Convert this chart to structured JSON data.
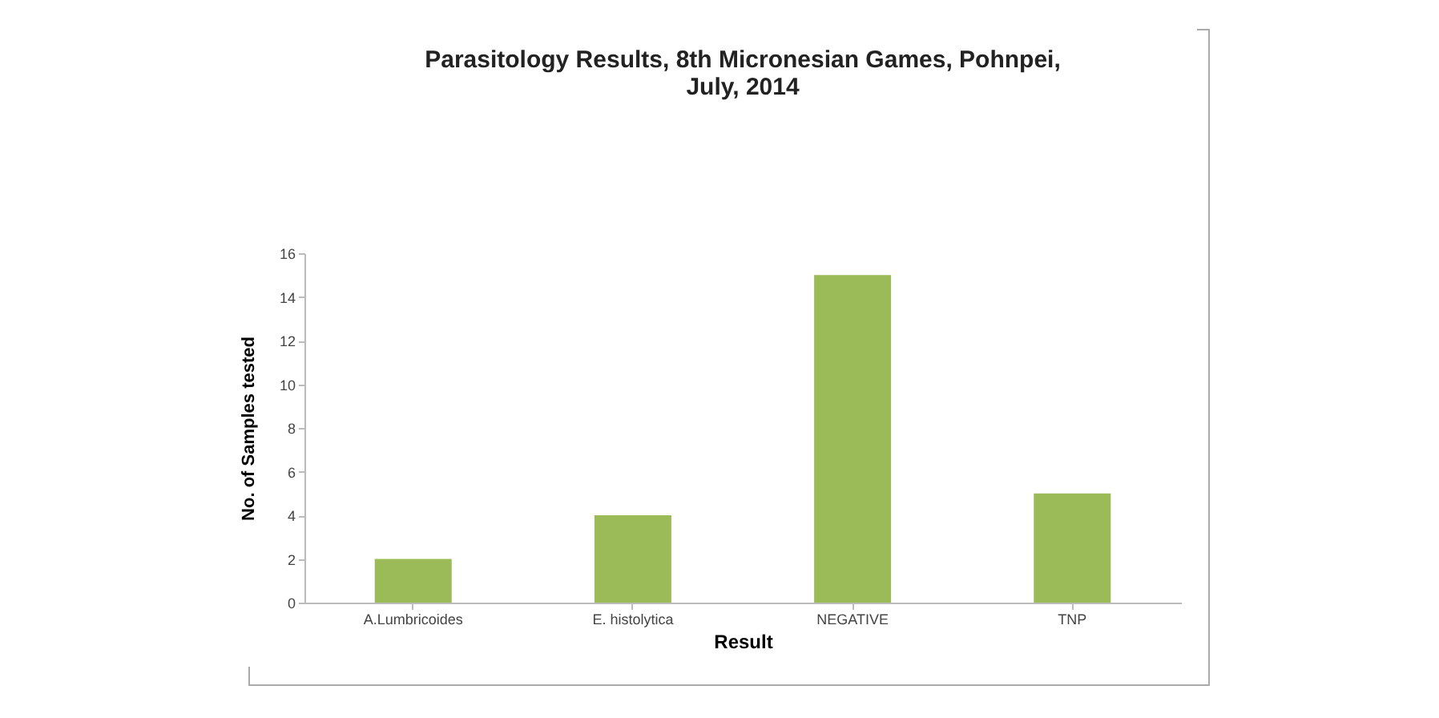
{
  "chart_data": {
    "type": "bar",
    "title": [
      "Parasitology Results, 8th Micronesian Games, Pohnpei,",
      "July, 2014"
    ],
    "xlabel": "Result",
    "ylabel": "No. of Samples tested",
    "categories": [
      "A.Lumbricoides",
      "E. histolytica",
      "NEGATIVE",
      "TNP"
    ],
    "values": [
      2,
      4,
      15,
      5
    ],
    "color": "#9bbb59",
    "ylim": [
      0,
      16
    ],
    "yticks": [
      0,
      2,
      4,
      6,
      8,
      10,
      12,
      14,
      16
    ],
    "grid": false
  }
}
